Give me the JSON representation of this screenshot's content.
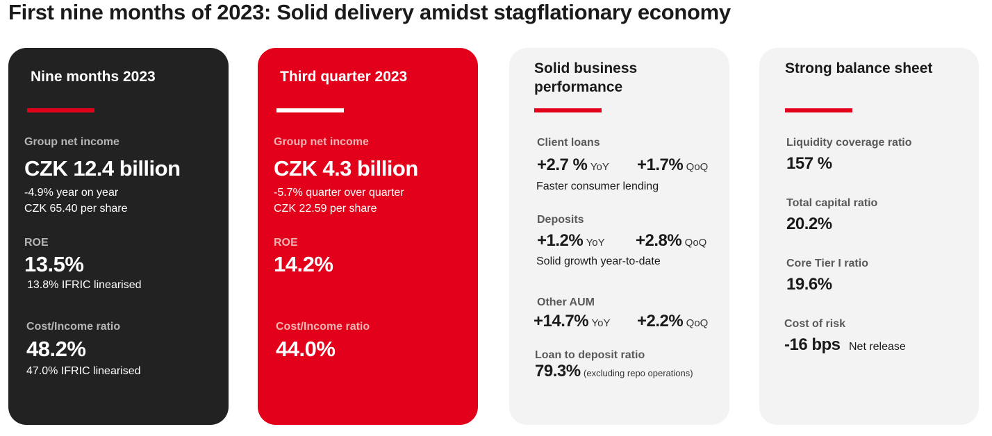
{
  "title": "First nine months of 2023: Solid delivery amidst stagflationary economy",
  "cards": {
    "nine_months": {
      "title": "Nine months 2023",
      "net_income_label": "Group net income",
      "net_income_value": "CZK 12.4 billion",
      "net_income_change": "-4.9% year on year",
      "per_share": "CZK 65.40 per share",
      "roe_label": "ROE",
      "roe_value": "13.5%",
      "roe_note": "13.8% IFRIC linearised",
      "ci_label": "Cost/Income ratio",
      "ci_value": "48.2%",
      "ci_note": "47.0% IFRIC linearised"
    },
    "third_quarter": {
      "title": "Third quarter 2023",
      "net_income_label": "Group net income",
      "net_income_value": "CZK 4.3 billion",
      "net_income_change": "-5.7% quarter over quarter",
      "per_share": "CZK 22.59 per share",
      "roe_label": "ROE",
      "roe_value": "14.2%",
      "ci_label": "Cost/Income ratio",
      "ci_value": "44.0%"
    },
    "business": {
      "title_line1": "Solid business",
      "title_line2": "performance",
      "client_loans_label": "Client loans",
      "client_loans_yoy": "+2.7 %",
      "client_loans_qoq": "+1.7%",
      "client_loans_note": "Faster consumer lending",
      "deposits_label": "Deposits",
      "deposits_yoy": "+1.2%",
      "deposits_qoq": "+2.8%",
      "deposits_note": "Solid growth year-to-date",
      "aum_label": "Other AUM",
      "aum_yoy": "+14.7%",
      "aum_qoq": "+2.2%",
      "ltd_label": "Loan to deposit ratio",
      "ltd_value": "79.3%",
      "ltd_note": "(excluding repo operations)",
      "yoy": "YoY",
      "qoq": "QoQ"
    },
    "balance": {
      "title": "Strong balance sheet",
      "lcr_label": "Liquidity coverage ratio",
      "lcr_value": "157 %",
      "tcr_label": "Total capital ratio",
      "tcr_value": "20.2%",
      "cet1_label": "Core Tier I ratio",
      "cet1_value": "19.6%",
      "cor_label": "Cost of risk",
      "cor_value": "-16 bps",
      "cor_note": "Net release"
    }
  },
  "colors": {
    "brand_red": "#e2001a",
    "dark_card": "#222222",
    "grey_card": "#f3f3f3"
  }
}
